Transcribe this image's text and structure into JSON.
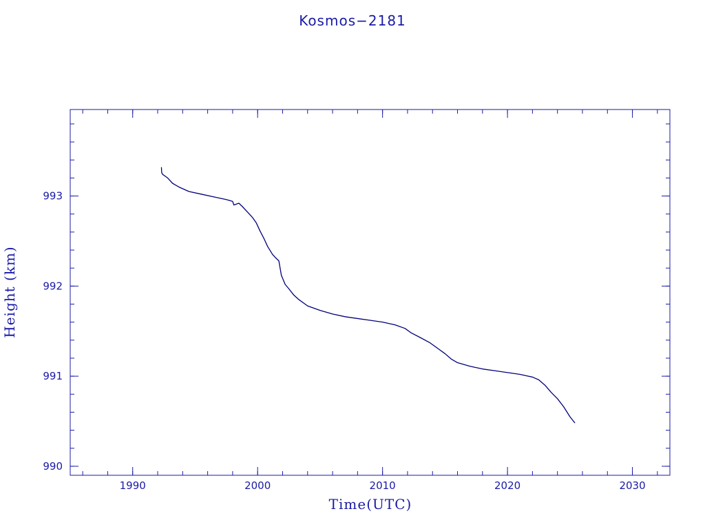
{
  "chart_data": {
    "type": "line",
    "title": "Kosmos−2181",
    "xlabel": "Time(UTC)",
    "ylabel": "Height (km)",
    "xlim": [
      1985,
      2033
    ],
    "ylim": [
      989.9,
      993.96
    ],
    "x_ticks": [
      1990,
      2000,
      2010,
      2020,
      2030
    ],
    "y_ticks": [
      990,
      991,
      992,
      993
    ],
    "x_minor_step": 2,
    "y_minor_step": 0.2,
    "grid": false,
    "legend": "none",
    "colors": {
      "line": "#00007a",
      "axis": "#1a1aa6",
      "text": "#1a1aa6"
    },
    "series": [
      {
        "values_x": [
          1992.3,
          1992.32,
          1992.4,
          1992.8,
          1993.2,
          1993.7,
          1994.5,
          1995.5,
          1996.5,
          1997.5,
          1998.0,
          1998.1,
          1998.5,
          1998.8,
          1999.2,
          1999.6,
          1999.9,
          2000.2,
          2000.5,
          2000.8,
          2001.2,
          2001.4,
          2001.7,
          2001.9,
          2002.2,
          2002.5,
          2002.9,
          2003.3,
          2004.0,
          2005.0,
          2006.0,
          2007.0,
          2008.0,
          2009.0,
          2010.0,
          2011.0,
          2011.8,
          2012.3,
          2013.0,
          2013.8,
          2014.5,
          2015.0,
          2015.5,
          2016.0,
          2017.0,
          2018.0,
          2019.0,
          2020.0,
          2021.0,
          2022.0,
          2022.5,
          2023.0,
          2023.5,
          2024.0,
          2024.5,
          2025.0,
          2025.4
        ],
        "values_y": [
          993.32,
          993.26,
          993.24,
          993.2,
          993.14,
          993.1,
          993.05,
          993.02,
          992.99,
          992.96,
          992.94,
          992.9,
          992.92,
          992.88,
          992.82,
          992.76,
          992.7,
          992.61,
          992.53,
          992.44,
          992.35,
          992.32,
          992.28,
          992.12,
          992.02,
          991.97,
          991.9,
          991.85,
          991.78,
          991.73,
          991.69,
          991.66,
          991.64,
          991.62,
          991.6,
          991.57,
          991.53,
          991.48,
          991.43,
          991.37,
          991.3,
          991.25,
          991.19,
          991.15,
          991.11,
          991.08,
          991.06,
          991.04,
          991.02,
          990.99,
          990.96,
          990.9,
          990.82,
          990.75,
          990.66,
          990.55,
          990.48
        ]
      }
    ]
  }
}
